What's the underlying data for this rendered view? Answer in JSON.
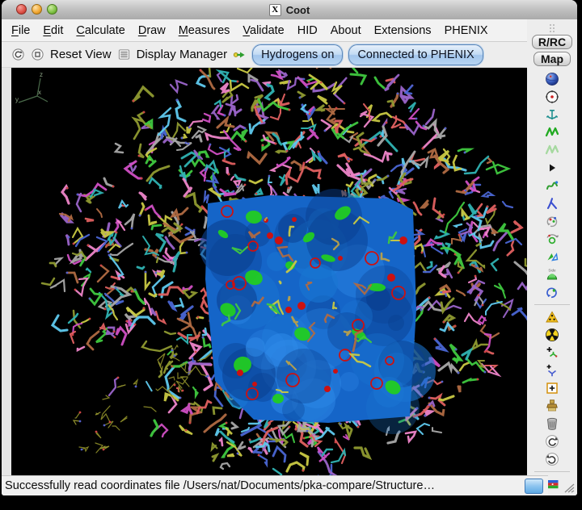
{
  "window": {
    "title": "Coot",
    "x11_icon": "X"
  },
  "menu": {
    "items": [
      {
        "label": "File",
        "mnemonic": true
      },
      {
        "label": "Edit",
        "mnemonic": true
      },
      {
        "label": "Calculate",
        "mnemonic": true
      },
      {
        "label": "Draw",
        "mnemonic": true
      },
      {
        "label": "Measures",
        "mnemonic": true
      },
      {
        "label": "Validate",
        "mnemonic": true
      },
      {
        "label": "HID",
        "mnemonic": false
      },
      {
        "label": "About",
        "mnemonic": false
      },
      {
        "label": "Extensions",
        "mnemonic": false
      },
      {
        "label": "PHENIX",
        "mnemonic": false
      }
    ]
  },
  "toolbar": {
    "icons": [
      "circle-back-icon",
      "circle-stop-icon"
    ],
    "reset_view_label": "Reset View",
    "display_manager_icon": "display-manager-icon",
    "display_manager_label": "Display Manager",
    "connect_icon": "connect-arrow-icon",
    "hydrogens_button": "Hydrogens on",
    "phenix_button": "Connected to PHENIX"
  },
  "right_panel": {
    "rrc_button": "R/RC",
    "map_button": "Map",
    "side_label": "Side",
    "icons": [
      "sphere-icon",
      "target-icon",
      "anchor-icon",
      "zigzag-icon",
      "zigzag-pale-icon",
      "triangle-right-icon",
      "squiggle-icon",
      "lambda-icon",
      "rotate-fragment-icon",
      "rotate-ring-icon",
      "flip-icon",
      "dome-icon",
      "rotate-blue-icon",
      "separator",
      "warning-icon",
      "radioactive-icon",
      "add-atom-icon",
      "add-terminal-icon",
      "box-plus-icon",
      "brush-icon",
      "trash-icon",
      "undo-icon",
      "redo-icon",
      "separator",
      "flag-icon",
      "separator",
      "play-icon"
    ]
  },
  "canvas": {
    "axes": {
      "x": "x",
      "y": "y",
      "z": "z",
      "line_color": "#4a6a4a",
      "label_color": "#8fa788"
    },
    "palette": [
      "#3fc93f",
      "#d04fc4",
      "#ee85c9",
      "#b06a42",
      "#2fb3b3",
      "#4a66d4",
      "#c9c943",
      "#9a64c9",
      "#a8a8a8",
      "#8f9a30",
      "#5fc9ee",
      "#e06060"
    ],
    "map_colors": {
      "base": "#1565c8",
      "dark": "#0a3f8f",
      "mid": "#1976d2",
      "light": "#2f8ae8",
      "diff_positive": "#22cc22",
      "diff_negative": "#cc1111"
    },
    "tail_colors": {
      "olive": "#8a8a28",
      "tip_red": "#cc4444",
      "tip_blue": "#5560cc"
    }
  },
  "status_bar": {
    "message": "Successfully read coordinates file /Users/nat/Documents/pka-compare/Structure…"
  }
}
